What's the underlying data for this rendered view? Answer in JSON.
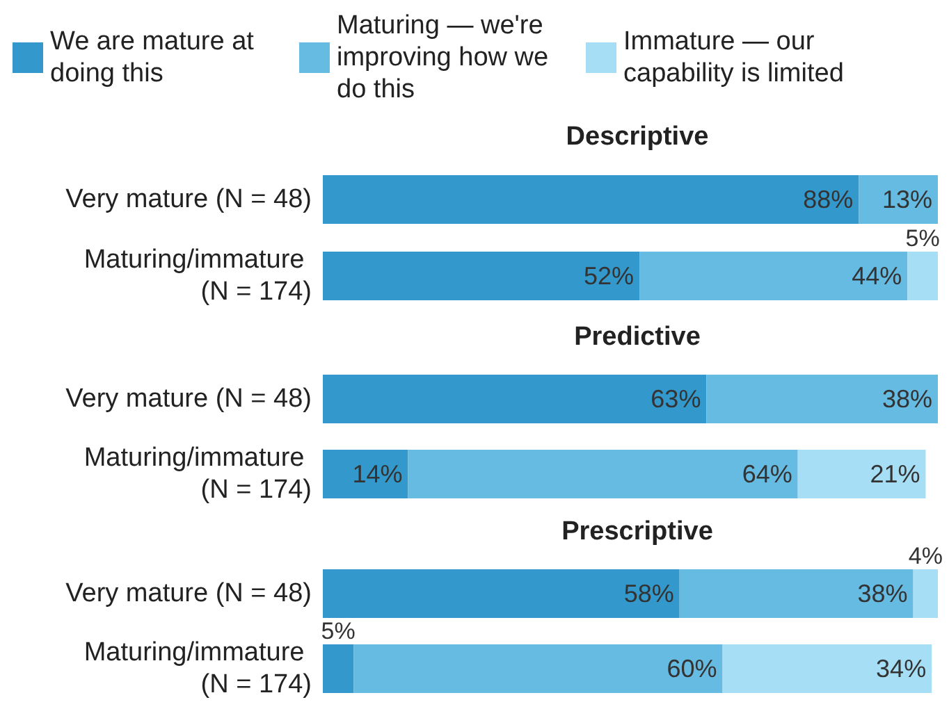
{
  "chart_data": [
    {
      "type": "bar",
      "orientation": "horizontal",
      "stacked": true,
      "title": "Descriptive",
      "legend": "top",
      "tick_labels": "y",
      "categories": [
        "Very mature (N = 48)",
        "Maturing/immature (N = 174)"
      ],
      "series": [
        {
          "name": "We are mature at doing this",
          "color": "#3399cc",
          "values": [
            88,
            52
          ],
          "value_labels": [
            "88%",
            "52%"
          ]
        },
        {
          "name": "Maturing — we're improving how we do this",
          "color": "#66bbe3",
          "values": [
            13,
            44
          ],
          "value_labels": [
            "13%",
            "44%"
          ]
        },
        {
          "name": "Immature — our capability is limited",
          "color": "#a6def5",
          "values": [
            0,
            5
          ],
          "value_labels": [
            null,
            "5%"
          ]
        }
      ]
    },
    {
      "type": "bar",
      "orientation": "horizontal",
      "stacked": true,
      "title": "Predictive",
      "tick_labels": "y",
      "categories": [
        "Very mature (N = 48)",
        "Maturing/immature (N = 174)"
      ],
      "series": [
        {
          "color": "#3399cc",
          "values": [
            63,
            14
          ],
          "value_labels": [
            "63%",
            "14%"
          ]
        },
        {
          "color": "#66bbe3",
          "values": [
            38,
            64
          ],
          "value_labels": [
            "38%",
            "64%"
          ]
        },
        {
          "color": "#a6def5",
          "values": [
            0,
            21
          ],
          "value_labels": [
            null,
            "21%"
          ]
        }
      ]
    },
    {
      "type": "bar",
      "orientation": "horizontal",
      "stacked": true,
      "title": "Prescriptive",
      "tick_labels": "y",
      "categories": [
        "Very mature (N = 48)",
        "Maturing/immature (N = 174)"
      ],
      "series": [
        {
          "color": "#3399cc",
          "values": [
            58,
            5
          ],
          "value_labels": [
            "58%",
            "5%"
          ]
        },
        {
          "color": "#66bbe3",
          "values": [
            38,
            60
          ],
          "value_labels": [
            "38%",
            "60%"
          ]
        },
        {
          "color": "#a6def5",
          "values": [
            4,
            34
          ],
          "value_labels": [
            "4%",
            "34%"
          ]
        }
      ]
    }
  ]
}
